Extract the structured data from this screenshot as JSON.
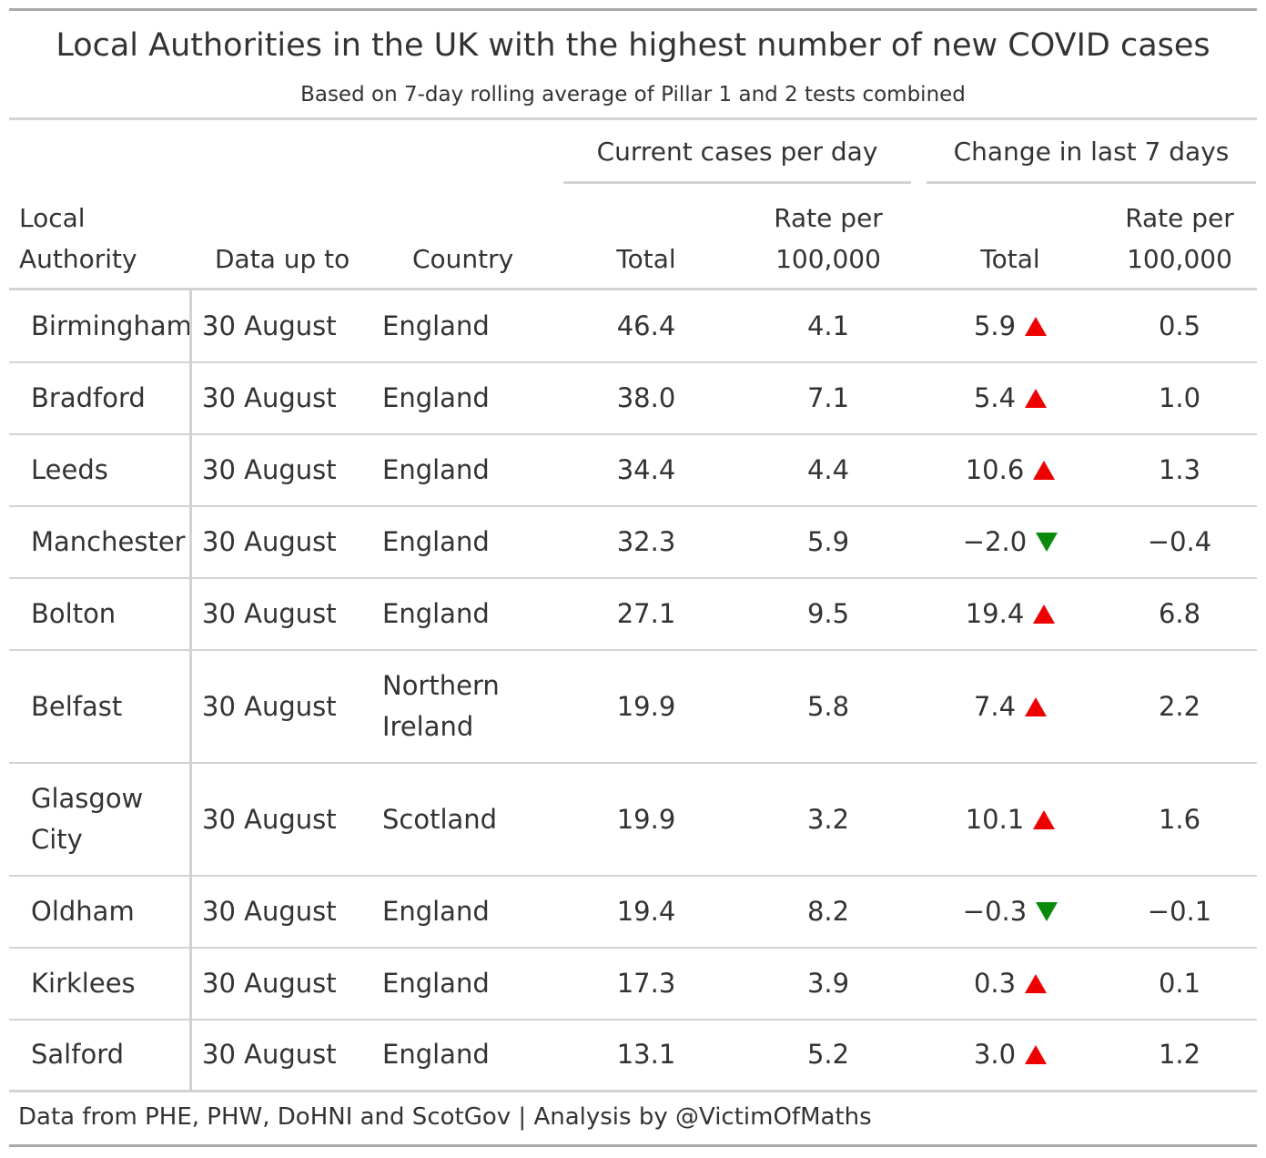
{
  "chart_data": {
    "type": "table",
    "title": "Local Authorities in the UK with the highest number of new COVID cases",
    "subtitle": "Based on 7-day rolling average of Pillar 1 and 2 tests combined",
    "spanners": {
      "current": "Current cases per day",
      "change": "Change in last 7 days"
    },
    "columns": {
      "authority": "Local Authority",
      "date": "Data up to",
      "country": "Country",
      "total": "Total",
      "rate": "Rate per 100,000",
      "change_total": "Total",
      "change_rate": "Rate per 100,000"
    },
    "rows": [
      {
        "authority": "Birmingham",
        "date": "30 August",
        "country": "England",
        "total": "46.4",
        "rate": "4.1",
        "change_total": "5.9",
        "trend": "up",
        "change_rate": "0.5"
      },
      {
        "authority": "Bradford",
        "date": "30 August",
        "country": "England",
        "total": "38.0",
        "rate": "7.1",
        "change_total": "5.4",
        "trend": "up",
        "change_rate": "1.0"
      },
      {
        "authority": "Leeds",
        "date": "30 August",
        "country": "England",
        "total": "34.4",
        "rate": "4.4",
        "change_total": "10.6",
        "trend": "up",
        "change_rate": "1.3"
      },
      {
        "authority": "Manchester",
        "date": "30 August",
        "country": "England",
        "total": "32.3",
        "rate": "5.9",
        "change_total": "−2.0",
        "trend": "down",
        "change_rate": "−0.4"
      },
      {
        "authority": "Bolton",
        "date": "30 August",
        "country": "England",
        "total": "27.1",
        "rate": "9.5",
        "change_total": "19.4",
        "trend": "up",
        "change_rate": "6.8"
      },
      {
        "authority": "Belfast",
        "date": "30 August",
        "country": "Northern Ireland",
        "total": "19.9",
        "rate": "5.8",
        "change_total": "7.4",
        "trend": "up",
        "change_rate": "2.2"
      },
      {
        "authority": "Glasgow City",
        "date": "30 August",
        "country": "Scotland",
        "total": "19.9",
        "rate": "3.2",
        "change_total": "10.1",
        "trend": "up",
        "change_rate": "1.6"
      },
      {
        "authority": "Oldham",
        "date": "30 August",
        "country": "England",
        "total": "19.4",
        "rate": "8.2",
        "change_total": "−0.3",
        "trend": "down",
        "change_rate": "−0.1"
      },
      {
        "authority": "Kirklees",
        "date": "30 August",
        "country": "England",
        "total": "17.3",
        "rate": "3.9",
        "change_total": "0.3",
        "trend": "up",
        "change_rate": "0.1"
      },
      {
        "authority": "Salford",
        "date": "30 August",
        "country": "England",
        "total": "13.1",
        "rate": "5.2",
        "change_total": "3.0",
        "trend": "up",
        "change_rate": "1.2"
      }
    ],
    "colors": {
      "up": "#ee0000",
      "down": "#0a8a0a"
    },
    "source": "Data from PHE, PHW, DoHNI and ScotGov | Analysis by @VictimOfMaths"
  }
}
